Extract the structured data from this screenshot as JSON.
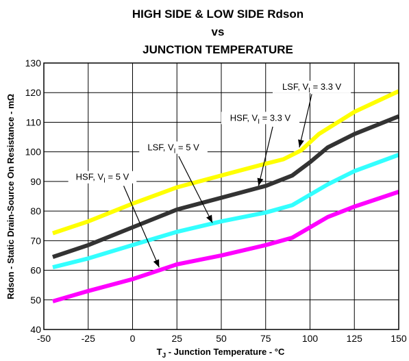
{
  "chart_data": {
    "type": "line",
    "title_lines": [
      "HIGH SIDE & LOW SIDE Rdson",
      "vs",
      "JUNCTION TEMPERATURE"
    ],
    "xlabel": {
      "main": "T",
      "sub": "J",
      "rest": " - Junction Temperature - °C"
    },
    "ylabel": "Rdson - Static Drain-Source On Resistance - mΩ",
    "xlim": [
      -50,
      150
    ],
    "ylim": [
      40,
      130
    ],
    "xticks": [
      -50,
      -25,
      0,
      25,
      50,
      75,
      100,
      125,
      150
    ],
    "yticks": [
      40,
      50,
      60,
      70,
      80,
      90,
      100,
      110,
      120,
      130
    ],
    "grid": true,
    "series": [
      {
        "name": "LSF, VI = 3.3 V",
        "color": "#ffff00",
        "points": [
          [
            -45,
            72.5
          ],
          [
            -25,
            76.5
          ],
          [
            0,
            82.5
          ],
          [
            25,
            88
          ],
          [
            50,
            92
          ],
          [
            75,
            96
          ],
          [
            85,
            97.5
          ],
          [
            95,
            100.5
          ],
          [
            105,
            106
          ],
          [
            125,
            113.5
          ],
          [
            150,
            120.5
          ]
        ]
      },
      {
        "name": "HSF, VI = 3.3 V",
        "color": "#333333",
        "points": [
          [
            -45,
            64.5
          ],
          [
            -25,
            68.5
          ],
          [
            0,
            74.5
          ],
          [
            25,
            80.5
          ],
          [
            50,
            84.5
          ],
          [
            75,
            88.5
          ],
          [
            90,
            92
          ],
          [
            100,
            96.5
          ],
          [
            110,
            101.5
          ],
          [
            125,
            106
          ],
          [
            150,
            112
          ]
        ]
      },
      {
        "name": "LSF, VI = 5 V",
        "color": "#33ffff",
        "points": [
          [
            -45,
            61
          ],
          [
            -25,
            64
          ],
          [
            0,
            68.5
          ],
          [
            25,
            73
          ],
          [
            50,
            76.5
          ],
          [
            75,
            79.5
          ],
          [
            90,
            82
          ],
          [
            100,
            85.5
          ],
          [
            110,
            89
          ],
          [
            125,
            93.5
          ],
          [
            150,
            99
          ]
        ]
      },
      {
        "name": "HSF, VI = 5 V",
        "color": "#ff00ff",
        "points": [
          [
            -45,
            49.5
          ],
          [
            -25,
            53
          ],
          [
            0,
            57
          ],
          [
            25,
            62
          ],
          [
            50,
            65
          ],
          [
            75,
            68.5
          ],
          [
            90,
            71
          ],
          [
            100,
            74.5
          ],
          [
            110,
            78
          ],
          [
            125,
            81.5
          ],
          [
            150,
            86.5
          ]
        ]
      }
    ],
    "annotations": [
      {
        "id": "lsf33",
        "prefix": "LSF, V",
        "sub": "I",
        "suffix": " = 3.3 V",
        "text_x": 101,
        "text_y": 121,
        "arrow_from": [
          101,
          119.5
        ],
        "arrow_to": [
          94,
          101.5
        ]
      },
      {
        "id": "hsf33",
        "prefix": "HSF, V",
        "sub": "I",
        "suffix": " = 3.3 V",
        "text_x": 72,
        "text_y": 110.5,
        "arrow_from": [
          79,
          108.5
        ],
        "arrow_to": [
          71,
          88.5
        ]
      },
      {
        "id": "lsf5",
        "prefix": "LSF, V",
        "sub": "I",
        "suffix": " = 5 V",
        "text_x": 23,
        "text_y": 100.5,
        "arrow_from": [
          26,
          98.5
        ],
        "arrow_to": [
          45,
          76
        ]
      },
      {
        "id": "hsf5",
        "prefix": "HSF, V",
        "sub": "I",
        "suffix": " = 5 V",
        "text_x": -17,
        "text_y": 90.5,
        "arrow_from": [
          -5,
          88.5
        ],
        "arrow_to": [
          15,
          61
        ]
      }
    ]
  }
}
